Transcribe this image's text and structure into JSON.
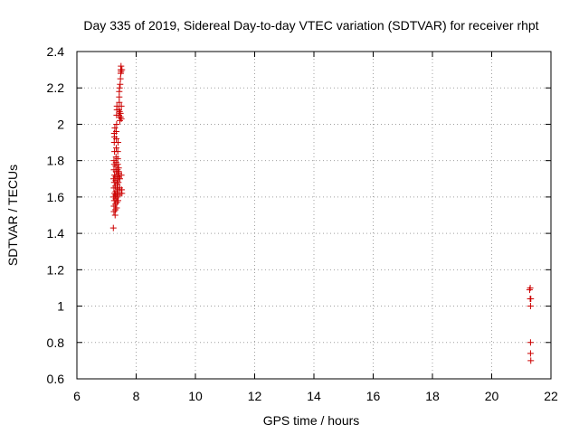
{
  "chart_data": {
    "type": "scatter",
    "title": "Day 335 of 2019, Sidereal Day-to-day VTEC variation (SDTVAR) for receiver rhpt",
    "xlabel": "GPS time / hours",
    "ylabel": "SDTVAR / TECUs",
    "xlim": [
      6,
      22
    ],
    "ylim": [
      0.6,
      2.4
    ],
    "x_ticks": [
      6,
      8,
      10,
      12,
      14,
      16,
      18,
      20,
      22
    ],
    "y_ticks": [
      0.6,
      0.8,
      1.0,
      1.2,
      1.4,
      1.6,
      1.8,
      2.0,
      2.2,
      2.4
    ],
    "x_tick_labels": [
      "6",
      "8",
      "10",
      "12",
      "14",
      "16",
      "18",
      "20",
      "22"
    ],
    "y_tick_labels": [
      "0.6",
      "0.8",
      "1",
      "1.2",
      "1.4",
      "1.6",
      "1.8",
      "2",
      "2.2",
      "2.4"
    ],
    "grid": true,
    "marker": "+",
    "marker_color": "#cc0000",
    "series": [
      {
        "name": "SDTVAR",
        "points": [
          [
            7.23,
            1.43
          ],
          [
            7.25,
            1.52
          ],
          [
            7.25,
            1.55
          ],
          [
            7.26,
            1.58
          ],
          [
            7.24,
            1.6
          ],
          [
            7.27,
            1.62
          ],
          [
            7.25,
            1.65
          ],
          [
            7.26,
            1.68
          ],
          [
            7.24,
            1.7
          ],
          [
            7.27,
            1.72
          ],
          [
            7.25,
            1.75
          ],
          [
            7.26,
            1.78
          ],
          [
            7.25,
            1.8
          ],
          [
            7.27,
            1.85
          ],
          [
            7.26,
            1.9
          ],
          [
            7.27,
            1.93
          ],
          [
            7.26,
            1.95
          ],
          [
            7.28,
            1.98
          ],
          [
            7.29,
            1.5
          ],
          [
            7.3,
            1.53
          ],
          [
            7.3,
            1.56
          ],
          [
            7.31,
            1.59
          ],
          [
            7.3,
            1.61
          ],
          [
            7.31,
            1.63
          ],
          [
            7.3,
            1.66
          ],
          [
            7.31,
            1.69
          ],
          [
            7.31,
            1.71
          ],
          [
            7.32,
            1.74
          ],
          [
            7.31,
            1.77
          ],
          [
            7.32,
            1.79
          ],
          [
            7.32,
            1.82
          ],
          [
            7.33,
            1.87
          ],
          [
            7.33,
            1.92
          ],
          [
            7.33,
            1.96
          ],
          [
            7.34,
            2.0
          ],
          [
            7.34,
            2.05
          ],
          [
            7.35,
            2.08
          ],
          [
            7.35,
            2.1
          ],
          [
            7.34,
            1.54
          ],
          [
            7.35,
            1.57
          ],
          [
            7.35,
            1.6
          ],
          [
            7.36,
            1.62
          ],
          [
            7.36,
            1.65
          ],
          [
            7.36,
            1.67
          ],
          [
            7.37,
            1.7
          ],
          [
            7.37,
            1.72
          ],
          [
            7.37,
            1.75
          ],
          [
            7.38,
            1.78
          ],
          [
            7.38,
            1.81
          ],
          [
            7.38,
            1.85
          ],
          [
            7.39,
            1.9
          ],
          [
            7.39,
            1.58
          ],
          [
            7.4,
            1.61
          ],
          [
            7.4,
            1.64
          ],
          [
            7.4,
            1.68
          ],
          [
            7.41,
            1.71
          ],
          [
            7.41,
            1.74
          ],
          [
            7.41,
            1.76
          ],
          [
            7.42,
            1.73
          ],
          [
            7.42,
            2.05
          ],
          [
            7.42,
            2.08
          ],
          [
            7.43,
            2.12
          ],
          [
            7.43,
            2.15
          ],
          [
            7.43,
            2.18
          ],
          [
            7.44,
            2.2
          ],
          [
            7.44,
            2.07
          ],
          [
            7.45,
            2.02
          ],
          [
            7.45,
            1.7
          ],
          [
            7.45,
            1.65
          ],
          [
            7.46,
            1.62
          ],
          [
            7.46,
            2.22
          ],
          [
            7.47,
            2.25
          ],
          [
            7.47,
            2.06
          ],
          [
            7.47,
            2.04
          ],
          [
            7.48,
            2.28
          ],
          [
            7.48,
            2.3
          ],
          [
            7.49,
            2.32
          ],
          [
            7.49,
            2.29
          ],
          [
            7.5,
            2.1
          ],
          [
            7.5,
            2.03
          ],
          [
            7.5,
            1.72
          ],
          [
            7.51,
            1.64
          ],
          [
            7.52,
            1.62
          ],
          [
            7.52,
            2.3
          ],
          [
            21.28,
            1.09
          ],
          [
            21.3,
            1.1
          ],
          [
            21.3,
            1.04
          ],
          [
            21.32,
            1.04
          ],
          [
            21.31,
            1.0
          ],
          [
            21.31,
            0.8
          ],
          [
            21.31,
            0.74
          ],
          [
            21.32,
            0.7
          ]
        ]
      }
    ]
  }
}
